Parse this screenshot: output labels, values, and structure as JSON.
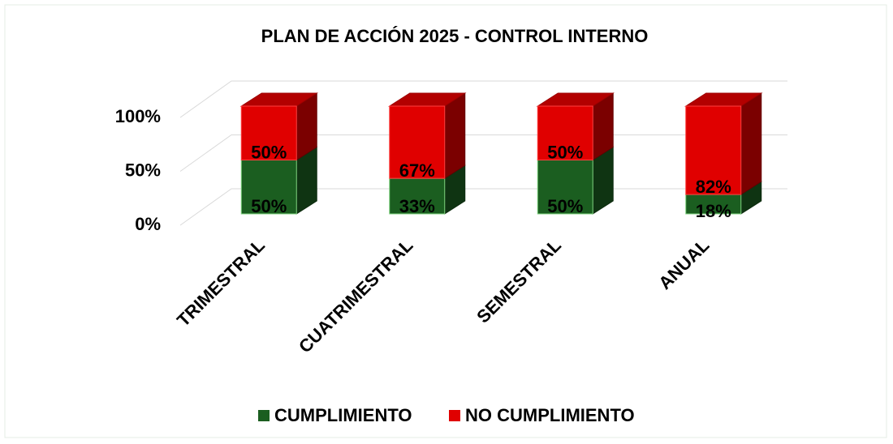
{
  "chart_data": {
    "type": "bar3d_stacked",
    "title": "PLAN DE ACCIÓN 2025 - CONTROL INTERNO",
    "categories": [
      "TRIMESTRAL",
      "CUATRIMESTRAL",
      "SEMESTRAL",
      "ANUAL"
    ],
    "series": [
      {
        "name": "CUMPLIMIENTO",
        "color": "#1b5e20",
        "values": [
          50,
          33,
          50,
          18
        ],
        "value_labels": [
          "50%",
          "33%",
          "50%",
          "18%"
        ]
      },
      {
        "name": "NO CUMPLIMIENTO",
        "color": "#e00000",
        "values": [
          50,
          67,
          50,
          82
        ],
        "value_labels": [
          "50%",
          "67%",
          "50%",
          "82%"
        ]
      }
    ],
    "ylim": [
      0,
      100
    ],
    "yticks": [
      {
        "value": 0,
        "label": "0%"
      },
      {
        "value": 50,
        "label": "50%"
      },
      {
        "value": 100,
        "label": "100%"
      }
    ],
    "grid": true,
    "legend": "bottom"
  }
}
